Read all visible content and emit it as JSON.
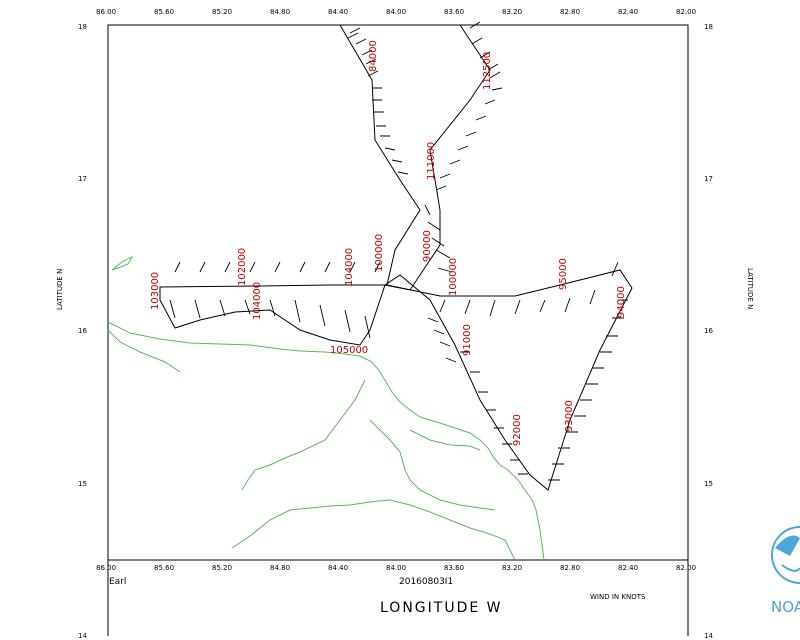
{
  "storm_name": "Earl",
  "flight_id": "20160803I1",
  "x_axis_title": "LONGITUDE  W",
  "y_axis_title": "LATITUDE  N",
  "wind_units": "WIND IN KNOTS",
  "logo_text": "NOAA",
  "x_ticks": [
    "86.00",
    "85.60",
    "85.20",
    "84.80",
    "84.40",
    "84.00",
    "83.60",
    "83.20",
    "82.80",
    "82.40",
    "82.00"
  ],
  "y_ticks_left": [
    "18",
    "17",
    "16",
    "15"
  ],
  "y_ticks_right": [
    "18",
    "17",
    "16",
    "15",
    "14"
  ],
  "y_bottom_left": "14",
  "time_labels": [
    "112500",
    "103000",
    "102000",
    "104000",
    "104000",
    "100000",
    "105000",
    "84000",
    "111000",
    "90000",
    "100000",
    "91000",
    "95000",
    "94000",
    "92000",
    "93000"
  ],
  "colors": {
    "track": "#000000",
    "coastline": "#5cb85c",
    "time_label": "#c00000",
    "logo": "#4aa7d8"
  }
}
